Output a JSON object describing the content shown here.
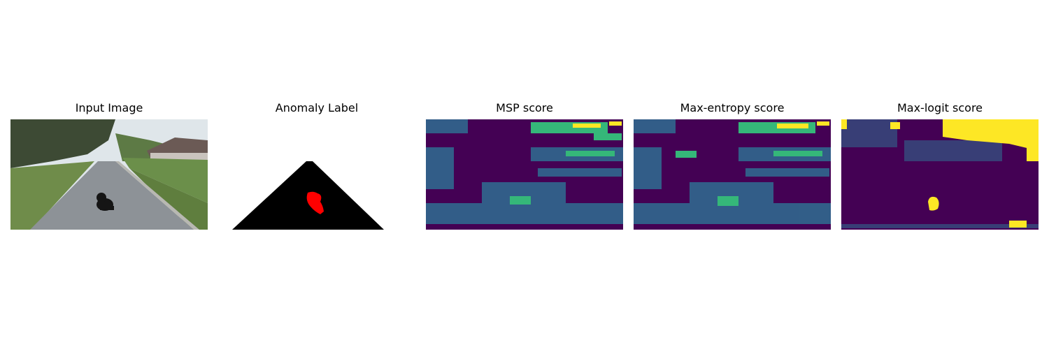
{
  "figure": {
    "panels": [
      {
        "title": "Input Image"
      },
      {
        "title": "Anomaly Label"
      },
      {
        "title": "MSP score"
      },
      {
        "title": "Max-entropy score"
      },
      {
        "title": "Max-logit score"
      }
    ]
  },
  "colors": {
    "label_road": "#000000",
    "label_anomaly": "#ff0000",
    "viridis_low": "#440154",
    "viridis_mid_blue": "#31688e",
    "viridis_mid_green": "#35b779",
    "viridis_high": "#fde725"
  }
}
